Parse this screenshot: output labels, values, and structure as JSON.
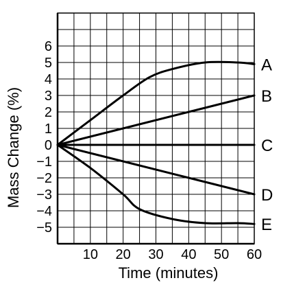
{
  "chart_data": {
    "type": "line",
    "title": "",
    "xlabel": "Time (minutes)",
    "ylabel": "Mass Change (%)",
    "xlim": [
      0,
      60
    ],
    "ylim": [
      -6,
      8
    ],
    "x_ticks": [
      10,
      20,
      30,
      40,
      50,
      60
    ],
    "y_ticks": [
      6,
      5,
      4,
      3,
      2,
      1,
      0,
      -1,
      -2,
      -3,
      -4,
      -5
    ],
    "grid": true,
    "series": [
      {
        "label": "A",
        "x": [
          0,
          10,
          20,
          28,
          35,
          45,
          55,
          60
        ],
        "y": [
          0,
          1.5,
          3.0,
          4.1,
          4.6,
          5.0,
          5.0,
          4.9
        ]
      },
      {
        "label": "B",
        "x": [
          0,
          20,
          40,
          60
        ],
        "y": [
          0,
          1.0,
          2.0,
          3.0
        ]
      },
      {
        "label": "C",
        "x": [
          0,
          60
        ],
        "y": [
          0,
          0
        ]
      },
      {
        "label": "D",
        "x": [
          0,
          20,
          40,
          60
        ],
        "y": [
          0,
          -1.0,
          -2.0,
          -3.0
        ]
      },
      {
        "label": "E",
        "x": [
          0,
          10,
          20,
          25,
          35,
          45,
          55,
          60
        ],
        "y": [
          0,
          -1.4,
          -3.0,
          -3.9,
          -4.5,
          -4.75,
          -4.75,
          -4.8
        ]
      }
    ]
  }
}
